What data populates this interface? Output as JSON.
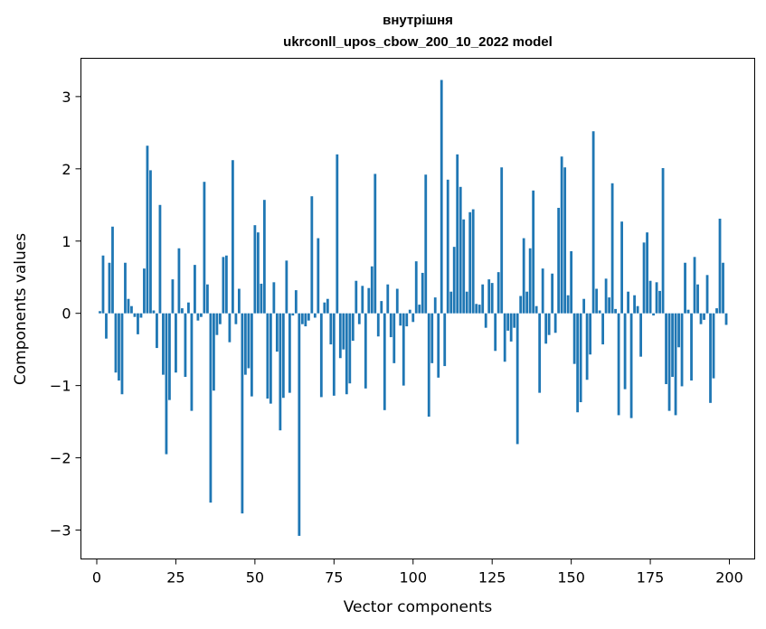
{
  "chart_data": {
    "type": "bar",
    "title_lines": [
      "внутрішня",
      "ukrconll_upos_cbow_200_10_2022 model"
    ],
    "xlabel": "Vector components",
    "ylabel": "Components values",
    "xlim": [
      -5,
      208
    ],
    "ylim": [
      -3.4,
      3.53
    ],
    "xticks": [
      0,
      25,
      50,
      75,
      100,
      125,
      150,
      175,
      200
    ],
    "yticks": [
      -3,
      -2,
      -1,
      0,
      1,
      2,
      3
    ],
    "ytick_labels": [
      "−3",
      "−2",
      "−1",
      "0",
      "1",
      "2",
      "3"
    ],
    "bar_color": "#1f77b4",
    "x_start": 1,
    "values": [
      0.03,
      0.8,
      -0.35,
      0.7,
      1.2,
      -0.82,
      -0.93,
      -1.12,
      0.7,
      0.2,
      0.1,
      -0.05,
      -0.29,
      -0.06,
      0.62,
      2.32,
      1.98,
      0.04,
      -0.48,
      1.5,
      -0.85,
      -1.95,
      -1.2,
      0.47,
      -0.82,
      0.9,
      0.07,
      -0.88,
      0.15,
      -1.35,
      0.67,
      -0.1,
      -0.05,
      1.82,
      0.4,
      -2.62,
      -1.07,
      -0.3,
      -0.15,
      0.78,
      0.8,
      -0.4,
      2.12,
      -0.15,
      0.34,
      -2.77,
      -0.85,
      -0.76,
      -1.15,
      1.22,
      1.12,
      0.41,
      1.57,
      -1.18,
      -1.25,
      0.43,
      -0.53,
      -1.62,
      -1.17,
      0.73,
      -1.1,
      -0.03,
      0.32,
      -3.08,
      -0.15,
      -0.18,
      -0.1,
      1.62,
      -0.06,
      1.04,
      -1.16,
      0.15,
      0.2,
      -0.43,
      -1.14,
      2.2,
      -0.62,
      -0.5,
      -1.12,
      -0.97,
      -0.38,
      0.45,
      -0.15,
      0.38,
      -1.04,
      0.35,
      0.65,
      1.93,
      -0.32,
      0.17,
      -1.34,
      0.4,
      -0.33,
      -0.69,
      0.34,
      -0.17,
      -1.0,
      -0.18,
      0.05,
      -0.12,
      0.72,
      0.12,
      0.56,
      1.92,
      -1.43,
      -0.69,
      0.22,
      -0.89,
      3.23,
      -0.73,
      1.85,
      0.3,
      0.92,
      2.2,
      1.75,
      1.3,
      0.3,
      1.4,
      1.44,
      0.13,
      0.12,
      0.4,
      -0.2,
      0.47,
      0.42,
      -0.52,
      0.57,
      2.02,
      -0.67,
      -0.24,
      -0.39,
      -0.2,
      -1.81,
      0.24,
      1.04,
      0.3,
      0.9,
      1.7,
      0.1,
      -1.1,
      0.62,
      -0.42,
      -0.3,
      0.55,
      -0.27,
      1.46,
      2.17,
      2.02,
      0.25,
      0.86,
      -0.7,
      -1.37,
      -1.23,
      0.2,
      -0.92,
      -0.57,
      2.52,
      0.34,
      0.04,
      -0.43,
      0.48,
      0.22,
      1.8,
      0.06,
      -1.41,
      1.27,
      -1.05,
      0.3,
      -1.45,
      0.25,
      0.1,
      -0.6,
      0.98,
      1.12,
      0.45,
      -0.03,
      0.43,
      0.31,
      2.01,
      -0.98,
      -1.35,
      -0.88,
      -1.41,
      -0.47,
      -1.01,
      0.7,
      0.05,
      -0.93,
      0.78,
      0.4,
      -0.15,
      -0.09,
      0.53,
      -1.24,
      -0.9,
      0.07,
      1.31,
      0.7,
      -0.16
    ]
  }
}
